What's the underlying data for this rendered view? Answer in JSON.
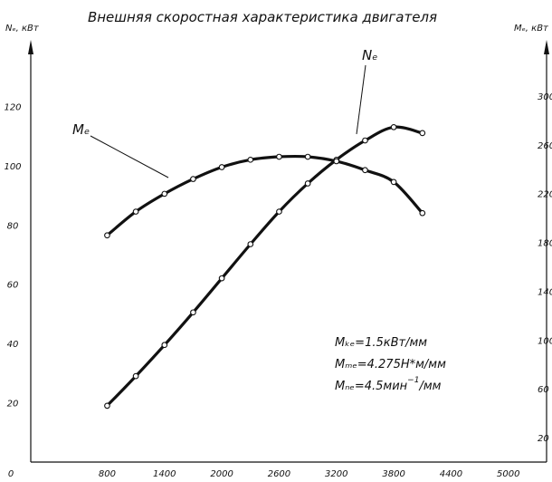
{
  "chart_data": {
    "type": "line",
    "title": "Внешняя скоростная характеристика двигателя",
    "left_axis_label": "Nₑ, кВт",
    "right_axis_label": "Mₑ, кВт",
    "x": {
      "ticks": [
        "0",
        "800",
        "1400",
        "2000",
        "2600",
        "3200",
        "3800",
        "4400",
        "5000"
      ],
      "range": [
        0,
        5400
      ]
    },
    "y_left": {
      "ticks": [
        "20",
        "40",
        "60",
        "80",
        "100",
        "120"
      ],
      "range": [
        0,
        140
      ]
    },
    "y_right": {
      "ticks": [
        "20",
        "60",
        "100",
        "140",
        "180",
        "220",
        "260",
        "300"
      ],
      "range": [
        0,
        340
      ]
    },
    "series": [
      {
        "name": "Ne",
        "axis": "left",
        "points": [
          [
            800,
            19
          ],
          [
            1100,
            29
          ],
          [
            1400,
            39.5
          ],
          [
            1700,
            50.5
          ],
          [
            2000,
            62
          ],
          [
            2300,
            73.5
          ],
          [
            2600,
            84.5
          ],
          [
            2900,
            94
          ],
          [
            3200,
            102
          ],
          [
            3500,
            108.5
          ],
          [
            3800,
            113
          ],
          [
            4100,
            111
          ]
        ]
      },
      {
        "name": "Me",
        "axis": "left",
        "points": [
          [
            800,
            76.5
          ],
          [
            1100,
            84.5
          ],
          [
            1400,
            90.5
          ],
          [
            1700,
            95.5
          ],
          [
            2000,
            99.5
          ],
          [
            2300,
            102
          ],
          [
            2600,
            103
          ],
          [
            2900,
            103
          ],
          [
            3200,
            101.5
          ],
          [
            3500,
            98.5
          ],
          [
            3800,
            94.5
          ],
          [
            4100,
            84
          ]
        ]
      }
    ],
    "curve_labels": {
      "ne": "Nₑ",
      "me": "Mₑ"
    },
    "scales": {
      "line1": "Mₖₑ=1.5кВт/мм",
      "line2": "Mₘₑ=4.275Н*м/мм",
      "line3_main": "Mₙₑ=4.5мин",
      "line3_sup": "−1",
      "line3_tail": "/мм"
    }
  }
}
